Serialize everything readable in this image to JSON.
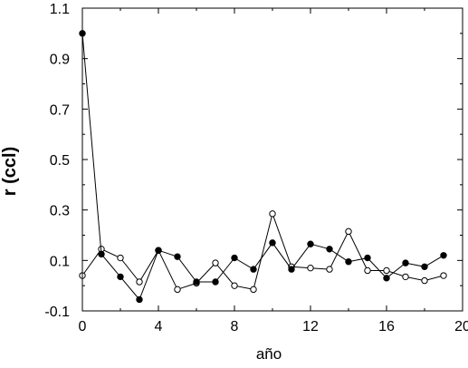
{
  "chart_data": {
    "type": "line",
    "title": "",
    "xlabel": "año",
    "ylabel": "r (ccl)",
    "xlim": [
      0,
      20
    ],
    "ylim": [
      -0.1,
      1.1
    ],
    "xticks": [
      "0",
      "4",
      "8",
      "12",
      "16",
      "20"
    ],
    "yticks": [
      "-0.1",
      "0.1",
      "0.3",
      "0.5",
      "0.7",
      "0.9",
      "1.1"
    ],
    "grid": false,
    "legend": "none",
    "series": [
      {
        "marker": "filled-circle",
        "color": "#000000",
        "x": [
          0,
          1,
          2,
          3,
          4,
          5,
          6,
          7,
          8,
          9,
          10,
          11,
          12,
          13,
          14,
          15,
          16,
          17,
          18,
          19
        ],
        "values": [
          1.0,
          0.125,
          0.035,
          -0.055,
          0.14,
          0.115,
          0.015,
          0.015,
          0.11,
          0.065,
          0.17,
          0.065,
          0.165,
          0.145,
          0.095,
          0.11,
          0.03,
          0.09,
          0.075,
          0.12
        ]
      },
      {
        "marker": "open-circle",
        "color": "#000000",
        "x": [
          0,
          1,
          2,
          3,
          4,
          5,
          6,
          7,
          8,
          9,
          10,
          11,
          12,
          13,
          14,
          15,
          16,
          17,
          18,
          19
        ],
        "values": [
          0.04,
          0.145,
          0.11,
          0.015,
          0.14,
          -0.015,
          0.01,
          0.09,
          0.0,
          -0.015,
          0.285,
          0.075,
          0.07,
          0.065,
          0.215,
          0.06,
          0.06,
          0.035,
          0.02,
          0.04
        ]
      }
    ]
  }
}
